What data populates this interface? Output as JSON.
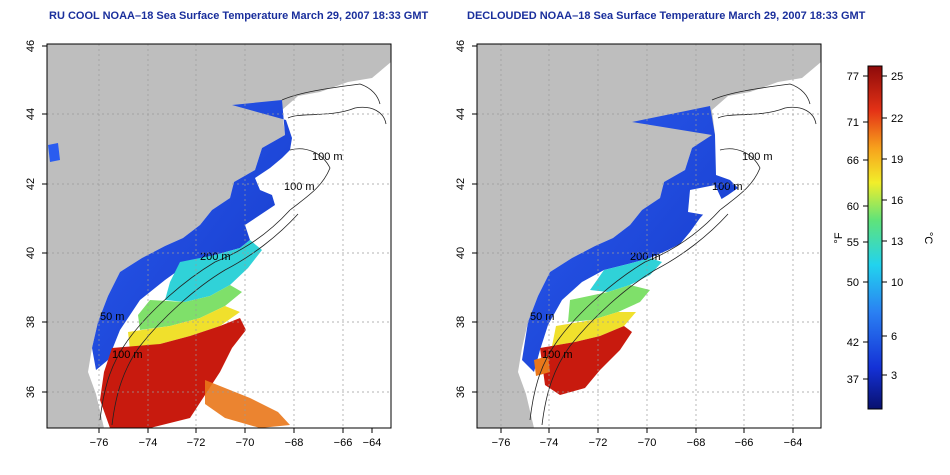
{
  "titles": {
    "left": "RU COOL NOAA–18 Sea Surface Temperature March 29, 2007 18:33 GMT",
    "right": "DECLOUDED NOAA–18 Sea Surface Temperature March 29, 2007 18:33 GMT"
  },
  "axes": {
    "x_ticks": [
      "−76",
      "−74",
      "−72",
      "−70",
      "−68",
      "−66",
      "−64"
    ],
    "y_ticks": [
      "36",
      "38",
      "40",
      "42",
      "44",
      "46"
    ]
  },
  "contours": {
    "labels": [
      "100 m",
      "100 m",
      "200 m",
      "50 m",
      "100 m"
    ]
  },
  "colorbar": {
    "f_label": "°F",
    "c_label": "°C",
    "f_ticks": [
      "77",
      "71",
      "66",
      "60",
      "55",
      "50",
      "42",
      "37"
    ],
    "c_ticks": [
      "25",
      "22",
      "19",
      "16",
      "13",
      "10",
      "6",
      "3"
    ]
  },
  "colors": {
    "land": "#bebebe",
    "cold": "#1f3fd8",
    "warm": "#c4130e",
    "title": "#1a2f9c"
  }
}
